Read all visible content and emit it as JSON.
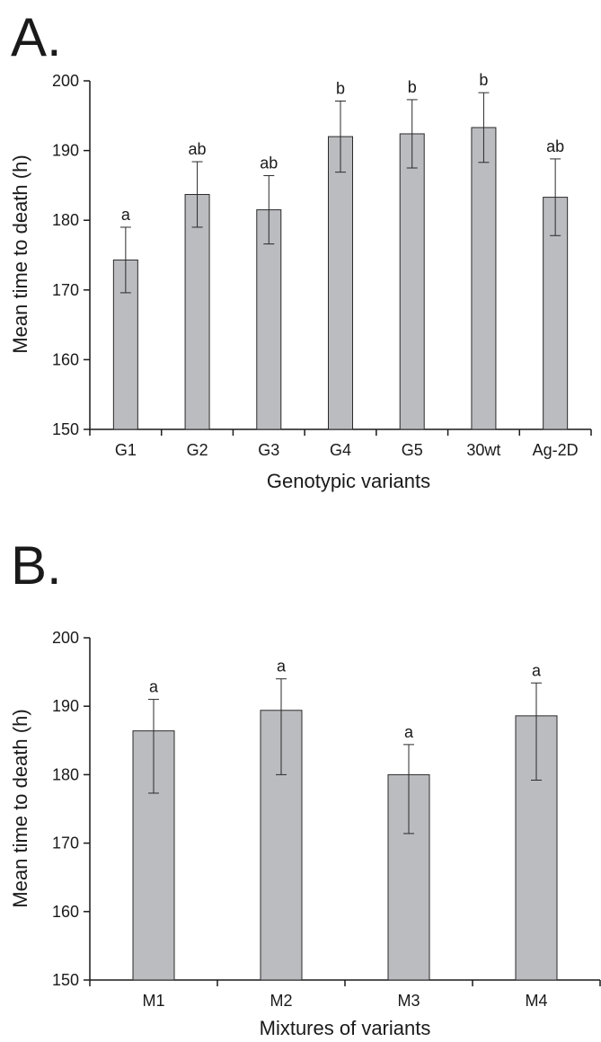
{
  "chart_data": [
    {
      "panel_label": "A.",
      "type": "bar",
      "categories": [
        "G1",
        "G2",
        "G3",
        "G4",
        "G5",
        "30wt",
        "Ag-2D"
      ],
      "values": [
        174.3,
        183.7,
        181.5,
        192.0,
        192.4,
        193.3,
        183.3
      ],
      "errors": [
        4.7,
        4.7,
        4.9,
        5.1,
        4.9,
        5.0,
        5.5
      ],
      "significance": [
        "a",
        "ab",
        "ab",
        "b",
        "b",
        "b",
        "ab"
      ],
      "xlabel": "Genotypic variants",
      "ylabel": "Mean time to death (h)",
      "ylim": [
        150,
        200
      ],
      "yticks": [
        150,
        160,
        170,
        180,
        190,
        200
      ],
      "bar_color": "#bbbcc0",
      "grid": false
    },
    {
      "panel_label": "B.",
      "type": "bar",
      "categories": [
        "M1",
        "M2",
        "M3",
        "M4"
      ],
      "values": [
        186.4,
        189.4,
        180.0,
        188.6
      ],
      "errors": [
        4.6,
        4.6,
        4.4,
        4.8
      ],
      "errors_lower": [
        9.1,
        9.4,
        8.6,
        9.4
      ],
      "significance": [
        "a",
        "a",
        "a",
        "a"
      ],
      "xlabel": "Mixtures of variants",
      "ylabel": "Mean time to death (h)",
      "ylim": [
        150,
        200
      ],
      "yticks": [
        150,
        160,
        170,
        180,
        190,
        200
      ],
      "bar_color": "#bbbcc0",
      "grid": false
    }
  ]
}
